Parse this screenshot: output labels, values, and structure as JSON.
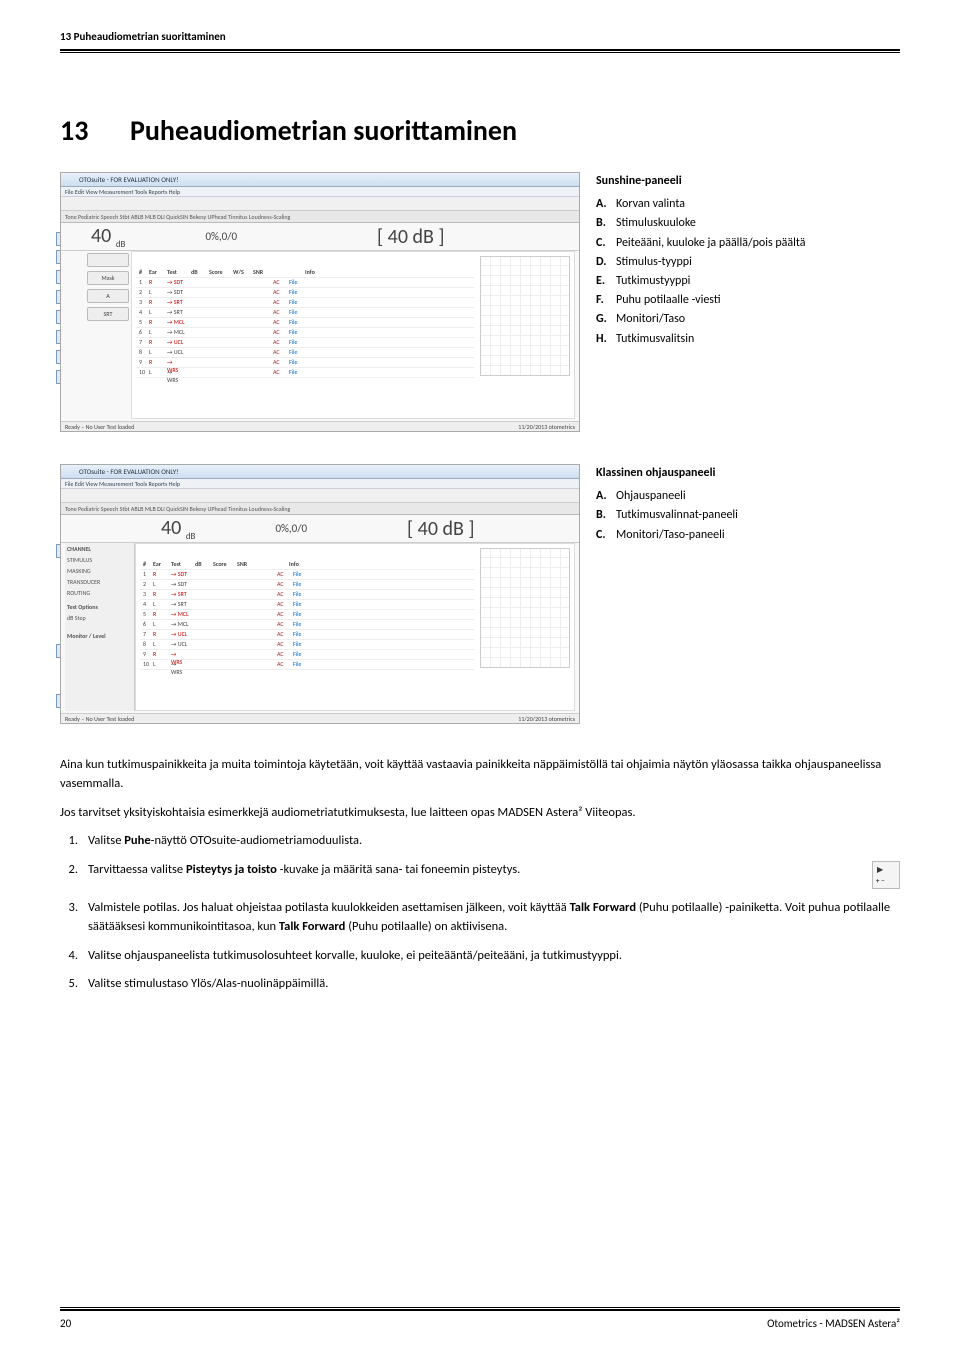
{
  "header": {
    "section": "13 Puheaudiometrian suorittaminen"
  },
  "chapter": {
    "num": "13",
    "title": "Puheaudiometrian suorittaminen"
  },
  "panel1": {
    "legend_title": "Sunshine-paneeli",
    "items": [
      {
        "l": "A.",
        "t": "Korvan valinta"
      },
      {
        "l": "B.",
        "t": "Stimuluskuuloke"
      },
      {
        "l": "C.",
        "t": "Peiteääni, kuuloke ja päällä/pois päältä"
      },
      {
        "l": "D.",
        "t": "Stimulus-tyyppi"
      },
      {
        "l": "E.",
        "t": "Tutkimustyyppi"
      },
      {
        "l": "F.",
        "t": "Puhu potilaalle -viesti"
      },
      {
        "l": "G.",
        "t": "Monitori/Taso"
      },
      {
        "l": "H.",
        "t": "Tutkimusvalitsin"
      }
    ],
    "callouts": [
      "A",
      "B",
      "C",
      "D",
      "E",
      "F",
      "G",
      "H"
    ],
    "titlebar": "OTOsuite - FOR EVALUATION ONLY!",
    "menubar": "File   Edit   View   Measurement   Tools   Reports   Help",
    "tabs": "Tone  Pediatric  Speech  Stbt  ABLB  MLB  DLI  QuickSIN  Bekesy  UPhead  Tinnitus  Loudness-Scaling",
    "ch_label": "Ch1  Pre-recorded - Phone - Right",
    "big1": "40",
    "unit1": "dB",
    "pct": "0%,0/0",
    "big2": "[ 40 dB ]",
    "status_left": "Ready – No User Test loaded",
    "status_right": "11/20/2013     otometrics",
    "btns": [
      "",
      "Mask",
      "A",
      "SRT"
    ],
    "table_hdr": [
      "#",
      "Ear",
      "Test",
      "dB",
      "Score",
      "W/S",
      "SNR",
      "",
      "",
      "Info"
    ],
    "tests": [
      "SDT",
      "SDT",
      "SRT",
      "SRT",
      "MCL",
      "MCL",
      "UCL",
      "UCL",
      "WRS",
      "WRS"
    ],
    "ac": "AC",
    "file": "File"
  },
  "panel2": {
    "legend_title": "Klassinen ohjauspaneeli",
    "items": [
      {
        "l": "A.",
        "t": "Ohjauspaneeli"
      },
      {
        "l": "B.",
        "t": "Tutkimusvalinnat-paneeli"
      },
      {
        "l": "C.",
        "t": "Monitori/Taso-paneeli"
      }
    ],
    "callouts": [
      "A",
      "B",
      "C"
    ],
    "side": {
      "channel": "CHANNEL",
      "stimulus": "STIMULUS",
      "masking": "MASKING",
      "transducer": "TRANSDUCER",
      "routing": "ROUTING",
      "testopt": "Test Options",
      "step": "dB Step",
      "monitor": "Monitor / Level"
    }
  },
  "body": {
    "p1": "Aina kun tutkimuspainikkeita ja muita toimintoja käytetään, voit käyttää vastaavia painikkeita näppäimistöllä tai ohjaimia näytön yläosassa taikka ohjauspaneelissa vasemmalla.",
    "p2": "Jos tarvitset yksityiskohtaisia esimerkkejä audiometriatutkimuksesta, lue laitteen opas MADSEN Astera² Viiteopas.",
    "li1_pre": "Valitse ",
    "li1_b": "Puhe",
    "li1_post": "-näyttö OTOsuite-audiometriamoduulista.",
    "li2_pre": "Tarvittaessa valitse ",
    "li2_b": "Pisteytys ja toisto",
    "li2_post": " -kuvake ja määritä sana- tai foneemin pisteytys.",
    "li3_pre": "Valmistele potilas. Jos haluat ohjeistaa potilasta kuulokkeiden asettamisen jälkeen, voit käyttää ",
    "li3_b1": "Talk Forward",
    "li3_mid": " (Puhu potilaalle) -painiketta. Voit puhua potilaalle säätääksesi kommunikointitasoa, kun ",
    "li3_b2": "Talk Forward",
    "li3_post": " (Puhu potilaalle) on aktiivisena.",
    "li4": "Valitse ohjauspaneelista tutkimusolosuhteet korvalle, kuuloke, ei peiteääntä/peiteääni, ja tutkimustyyppi.",
    "li5": "Valitse stimulustaso Ylös/Alas-nuolinäppäimillä."
  },
  "footer": {
    "page": "20",
    "product": "Otometrics - MADSEN Astera²"
  }
}
